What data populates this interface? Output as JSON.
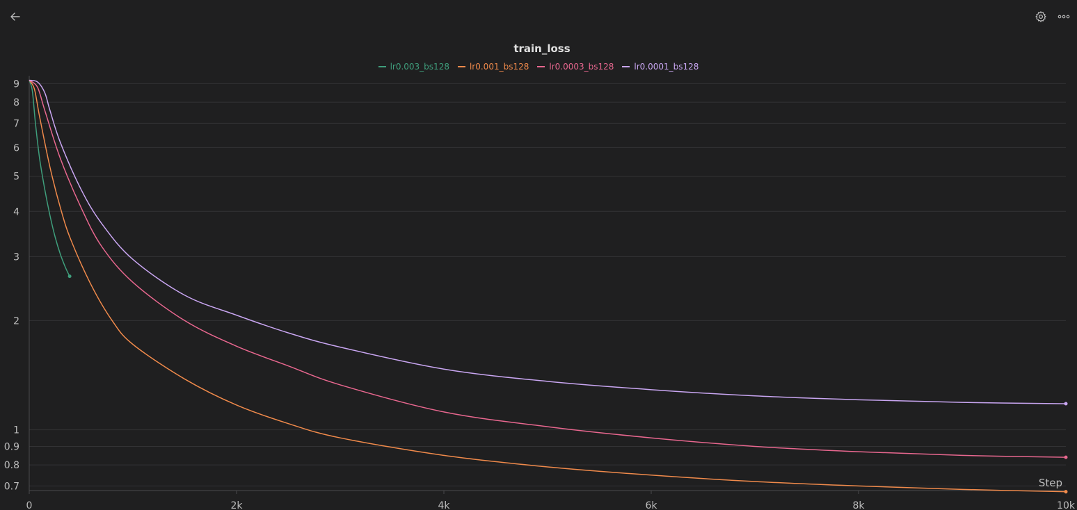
{
  "toolbar": {
    "back_icon": "arrow-left-icon",
    "settings_icon": "gear-icon",
    "more_icon": "more-horizontal-icon"
  },
  "chart_data": {
    "type": "line",
    "title": "train_loss",
    "xlabel": "Step",
    "ylabel": "",
    "y_scale": "log",
    "xlim": [
      0,
      10000
    ],
    "ylim": [
      0.68,
      9.3
    ],
    "x_ticks": [
      0,
      2000,
      4000,
      6000,
      8000,
      10000
    ],
    "x_tick_labels": [
      "0",
      "2k",
      "4k",
      "6k",
      "8k",
      "10k"
    ],
    "y_ticks": [
      0.7,
      0.8,
      0.9,
      1,
      2,
      3,
      4,
      5,
      6,
      7,
      8,
      9
    ],
    "y_tick_labels": [
      "0.7",
      "0.8",
      "0.9",
      "1",
      "2",
      "3",
      "4",
      "5",
      "6",
      "7",
      "8",
      "9"
    ],
    "grid": true,
    "legend_position": "top-center",
    "series": [
      {
        "name": "lr0.003_bs128",
        "color": "#3f9e7c",
        "x": [
          0,
          30,
          60,
          100,
          150,
          200,
          250,
          300,
          350,
          390
        ],
        "y": [
          9.2,
          8.6,
          7.0,
          5.6,
          4.6,
          3.9,
          3.4,
          3.05,
          2.8,
          2.65
        ]
      },
      {
        "name": "lr0.001_bs128",
        "color": "#f08a4b",
        "x": [
          0,
          50,
          100,
          200,
          300,
          400,
          600,
          800,
          1000,
          1500,
          2000,
          2500,
          3000,
          4000,
          5000,
          6000,
          7000,
          8000,
          9000,
          10000
        ],
        "y": [
          9.2,
          8.7,
          7.3,
          5.3,
          4.1,
          3.35,
          2.5,
          2.0,
          1.72,
          1.38,
          1.17,
          1.04,
          0.95,
          0.85,
          0.79,
          0.75,
          0.72,
          0.7,
          0.685,
          0.675
        ]
      },
      {
        "name": "lr0.0003_bs128",
        "color": "#e8678f",
        "x": [
          0,
          80,
          150,
          300,
          500,
          700,
          1000,
          1500,
          2000,
          2500,
          3000,
          4000,
          5000,
          6000,
          7000,
          8000,
          9000,
          10000
        ],
        "y": [
          9.2,
          8.8,
          7.6,
          5.6,
          4.1,
          3.2,
          2.55,
          2.0,
          1.7,
          1.5,
          1.33,
          1.12,
          1.02,
          0.95,
          0.9,
          0.87,
          0.85,
          0.84
        ]
      },
      {
        "name": "lr0.0001_bs128",
        "color": "#c9a6f2",
        "x": [
          0,
          80,
          150,
          200,
          300,
          500,
          700,
          1000,
          1500,
          2000,
          2500,
          3000,
          4000,
          5000,
          6000,
          7000,
          8000,
          9000,
          10000
        ],
        "y": [
          9.2,
          9.1,
          8.5,
          7.6,
          6.2,
          4.6,
          3.7,
          2.95,
          2.35,
          2.07,
          1.85,
          1.69,
          1.47,
          1.36,
          1.29,
          1.24,
          1.21,
          1.19,
          1.18
        ]
      }
    ]
  }
}
